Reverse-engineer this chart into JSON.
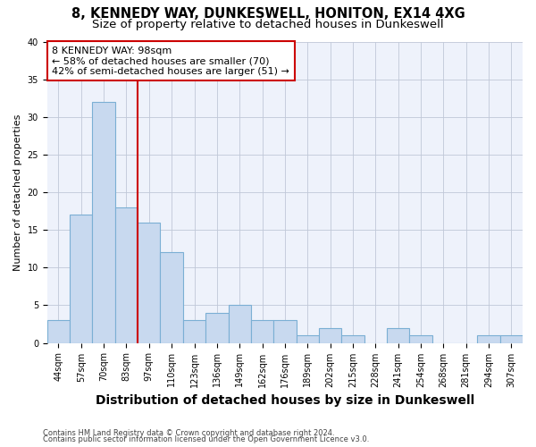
{
  "title": "8, KENNEDY WAY, DUNKESWELL, HONITON, EX14 4XG",
  "subtitle": "Size of property relative to detached houses in Dunkeswell",
  "xlabel": "Distribution of detached houses by size in Dunkeswell",
  "ylabel": "Number of detached properties",
  "categories": [
    "44sqm",
    "57sqm",
    "70sqm",
    "83sqm",
    "97sqm",
    "110sqm",
    "123sqm",
    "136sqm",
    "149sqm",
    "162sqm",
    "176sqm",
    "189sqm",
    "202sqm",
    "215sqm",
    "228sqm",
    "241sqm",
    "254sqm",
    "268sqm",
    "281sqm",
    "294sqm",
    "307sqm"
  ],
  "values": [
    3,
    17,
    32,
    18,
    16,
    12,
    3,
    4,
    5,
    3,
    3,
    1,
    2,
    1,
    0,
    2,
    1,
    0,
    0,
    1,
    1
  ],
  "bar_color": "#c8d9ef",
  "bar_edge_color": "#7bafd4",
  "ylim": [
    0,
    40
  ],
  "yticks": [
    0,
    5,
    10,
    15,
    20,
    25,
    30,
    35,
    40
  ],
  "vline_color": "#cc0000",
  "annotation_text": "8 KENNEDY WAY: 98sqm\n← 58% of detached houses are smaller (70)\n42% of semi-detached houses are larger (51) →",
  "annotation_box_color": "#ffffff",
  "annotation_border_color": "#cc0000",
  "footnote1": "Contains HM Land Registry data © Crown copyright and database right 2024.",
  "footnote2": "Contains public sector information licensed under the Open Government Licence v3.0.",
  "plot_bg_color": "#eef2fb",
  "title_fontsize": 10.5,
  "subtitle_fontsize": 9.5,
  "xlabel_fontsize": 10,
  "ylabel_fontsize": 8,
  "tick_fontsize": 7,
  "annot_fontsize": 8,
  "footnote_fontsize": 6
}
